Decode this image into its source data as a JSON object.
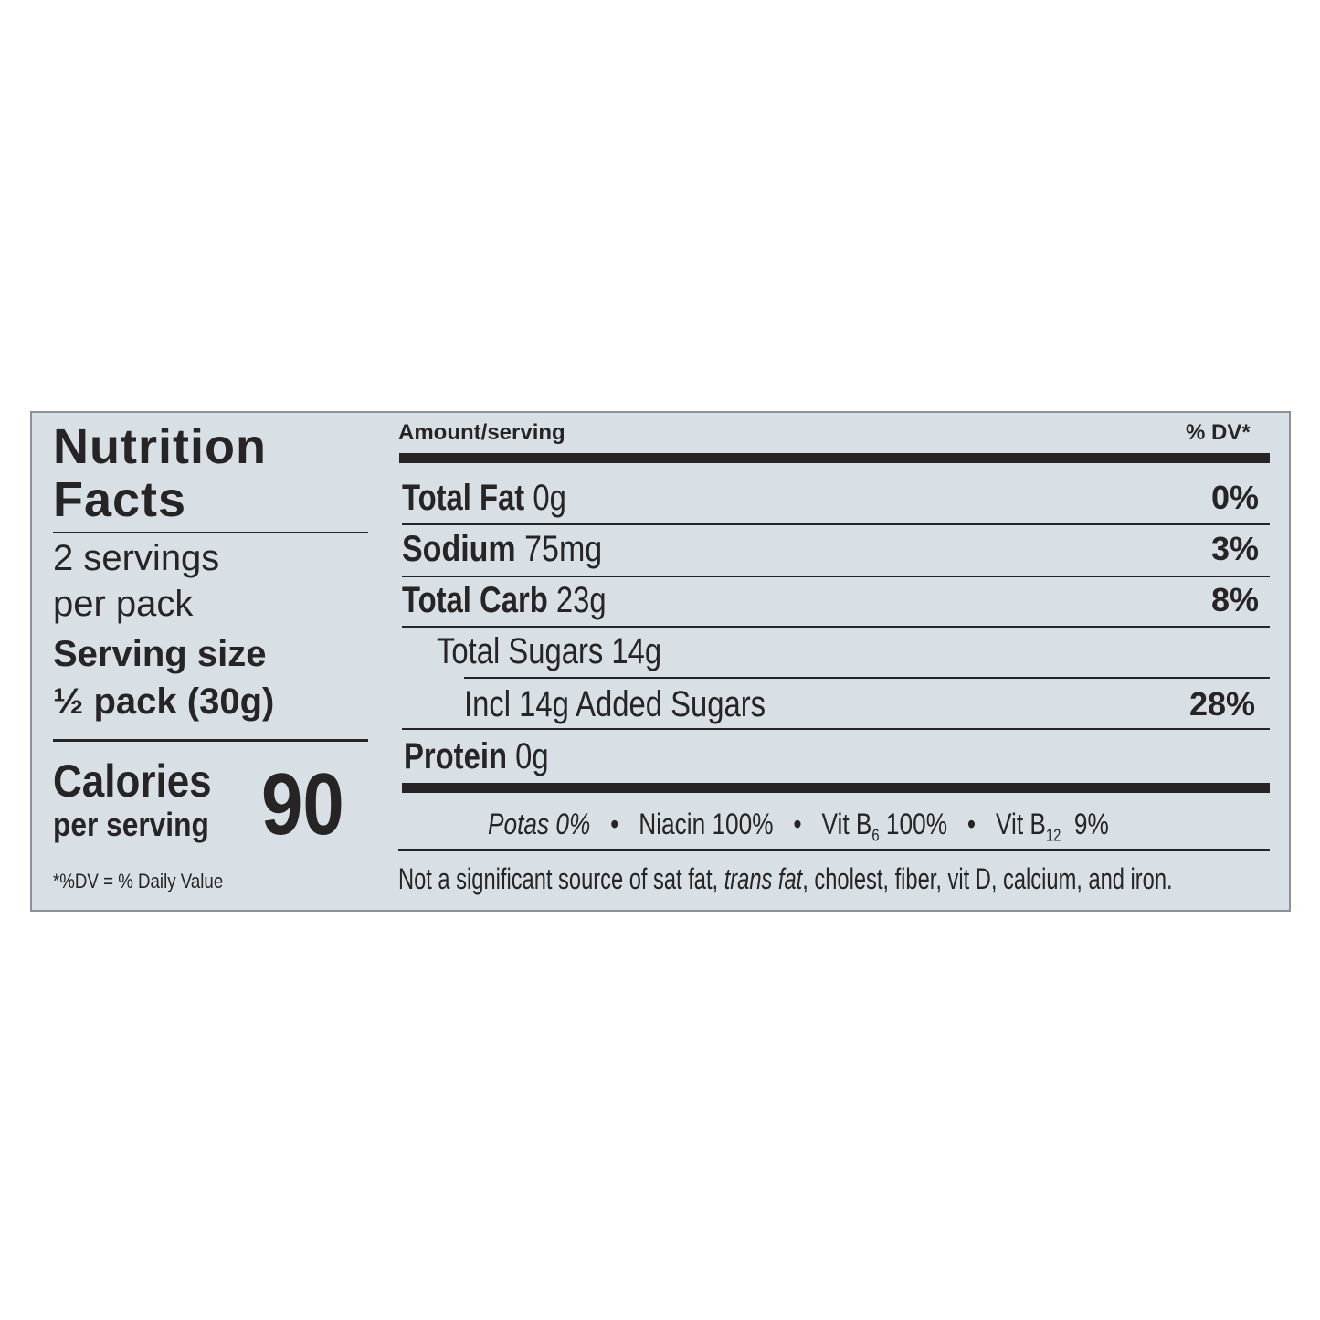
{
  "title_line1": "Nutrition",
  "title_line2": "Facts",
  "servings_line1": "2 servings",
  "servings_line2": "per pack",
  "serving_size_label": "Serving size",
  "serving_size_value": "½ pack (30g)",
  "calories_label": "Calories",
  "calories_sub": "per serving",
  "calories_value": "90",
  "dv_footnote": "*%DV = % Daily Value",
  "header": {
    "amount": "Amount/serving",
    "dv": "% DV*"
  },
  "nutrients": [
    {
      "name": "Total Fat",
      "amount": "0g",
      "dv": "0%"
    },
    {
      "name": "Sodium",
      "amount": "75mg",
      "dv": "3%"
    },
    {
      "name": "Total Carb",
      "amount": "23g",
      "dv": "8%"
    },
    {
      "name": "Total Sugars 14g",
      "amount": "",
      "dv": ""
    },
    {
      "name": "Incl 14g Added Sugars",
      "amount": "",
      "dv": "28%"
    },
    {
      "name": "Protein",
      "amount": "0g",
      "dv": ""
    }
  ],
  "vitamins": {
    "potas": "Potas 0%",
    "niacin": "Niacin 100%",
    "b6_prefix": "Vit B",
    "b6_sub": "6",
    "b6_value": "100%",
    "b12_prefix": "Vit B",
    "b12_sub": "12",
    "b12_value": "9%",
    "separator": "•"
  },
  "footnote": {
    "part1": "Not a significant source of sat fat, ",
    "italic": "trans fat",
    "part2": ", cholest, fiber, vit D, calcium, and iron."
  }
}
